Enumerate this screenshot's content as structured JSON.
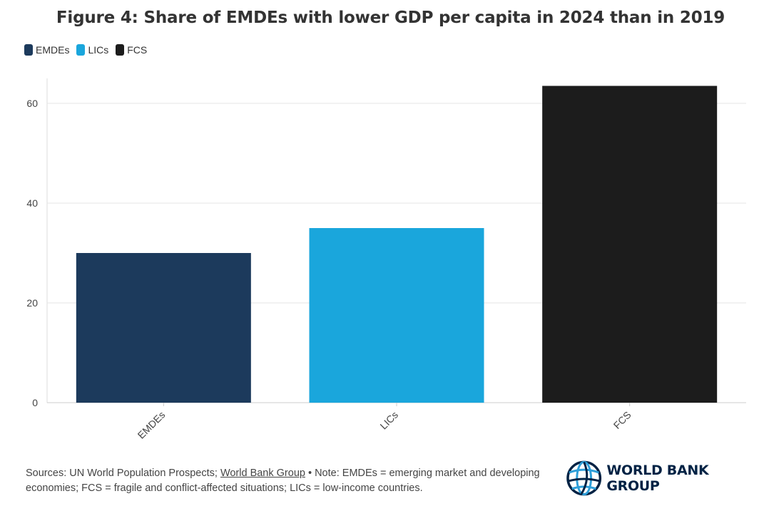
{
  "title": "Figure 4: Share of EMDEs with lower GDP per capita in 2024 than in 2019",
  "legend": [
    {
      "label": "EMDEs",
      "color": "#1c3a5c"
    },
    {
      "label": "LICs",
      "color": "#1aa6dc"
    },
    {
      "label": "FCS",
      "color": "#1c1c1c"
    }
  ],
  "chart_data": {
    "type": "bar",
    "categories": [
      "EMDEs",
      "LICs",
      "FCS"
    ],
    "values": [
      30,
      35,
      63.5
    ],
    "colors": [
      "#1c3a5c",
      "#1aa6dc",
      "#1c1c1c"
    ],
    "yticks": [
      0,
      20,
      40,
      60
    ],
    "ylim": [
      0,
      65
    ],
    "grid": true,
    "legend_position": "top-left"
  },
  "footer": {
    "sources_prefix": "Sources: UN World Population Prospects; ",
    "sources_link": "World Bank Group",
    "note": " • Note: EMDEs = emerging market and developing economies; FCS = fragile and conflict-affected situations; LICs = low-income countries."
  },
  "logo": {
    "text": "WORLD BANK GROUP",
    "icon": "world-bank-globe-icon",
    "color": "#002244"
  }
}
